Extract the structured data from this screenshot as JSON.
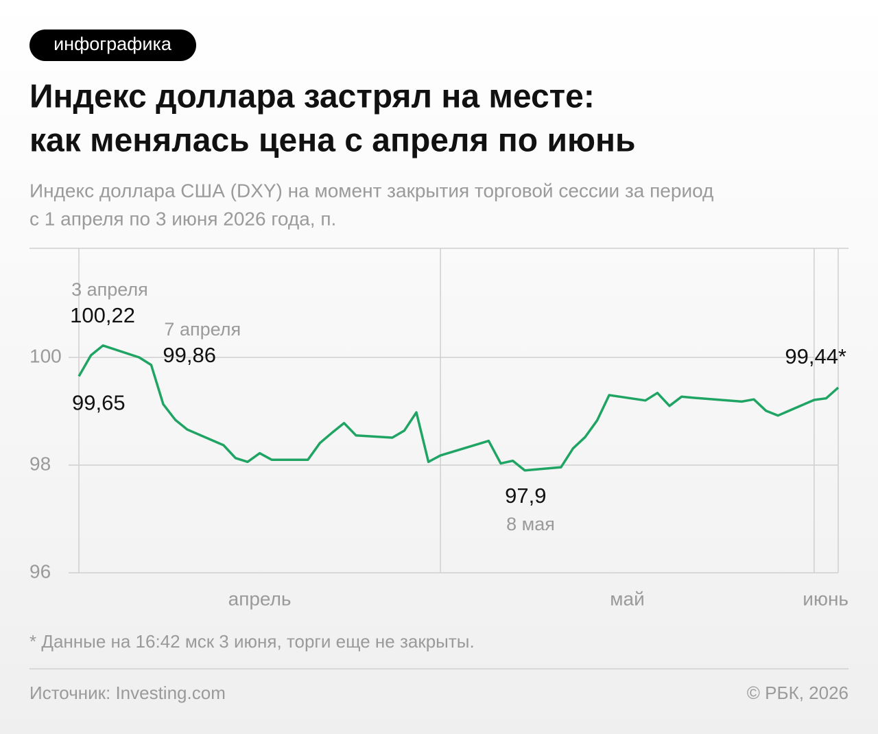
{
  "badge": "инфографика",
  "chart_data": {
    "type": "line",
    "title": [
      "Индекс доллара застрял на месте:",
      "как менялась цена с апреля по июнь"
    ],
    "subtitle": [
      "Индекс доллара США (DXY) на момент закрытия торговой сессии за период",
      "с 1 апреля по 3 июня 2026 года, п."
    ],
    "color": "#1fa463",
    "x": [
      "2026-04-01",
      "2026-04-02",
      "2026-04-03",
      "2026-04-06",
      "2026-04-07",
      "2026-04-08",
      "2026-04-09",
      "2026-04-10",
      "2026-04-13",
      "2026-04-14",
      "2026-04-15",
      "2026-04-16",
      "2026-04-17",
      "2026-04-20",
      "2026-04-21",
      "2026-04-22",
      "2026-04-23",
      "2026-04-24",
      "2026-04-27",
      "2026-04-28",
      "2026-04-29",
      "2026-04-30",
      "2026-05-01",
      "2026-05-05",
      "2026-05-06",
      "2026-05-07",
      "2026-05-08",
      "2026-05-11",
      "2026-05-12",
      "2026-05-13",
      "2026-05-14",
      "2026-05-15",
      "2026-05-18",
      "2026-05-19",
      "2026-05-20",
      "2026-05-21",
      "2026-05-22",
      "2026-05-26",
      "2026-05-27",
      "2026-05-28",
      "2026-05-29",
      "2026-06-01",
      "2026-06-02",
      "2026-06-03"
    ],
    "values": [
      99.65,
      100.04,
      100.22,
      100.0,
      99.86,
      99.13,
      98.84,
      98.66,
      98.37,
      98.13,
      98.06,
      98.22,
      98.1,
      98.1,
      98.41,
      98.6,
      98.78,
      98.55,
      98.51,
      98.64,
      98.98,
      98.06,
      98.18,
      98.45,
      98.03,
      98.08,
      97.9,
      97.96,
      98.31,
      98.52,
      98.83,
      99.3,
      99.2,
      99.34,
      99.1,
      99.27,
      99.25,
      99.18,
      99.22,
      99.01,
      98.92,
      99.21,
      99.24,
      99.44
    ],
    "value_labels": [
      "99,65",
      null,
      "100,22",
      null,
      "99,86",
      null,
      null,
      null,
      null,
      null,
      null,
      null,
      null,
      null,
      null,
      null,
      null,
      null,
      null,
      null,
      null,
      null,
      null,
      null,
      null,
      null,
      "97,9",
      null,
      null,
      null,
      null,
      null,
      null,
      null,
      null,
      null,
      null,
      null,
      null,
      null,
      null,
      null,
      null,
      "99,44*"
    ],
    "date_labels": [
      null,
      null,
      "3 апреля",
      null,
      "7 апреля",
      null,
      null,
      null,
      null,
      null,
      null,
      null,
      null,
      null,
      null,
      null,
      null,
      null,
      null,
      null,
      null,
      null,
      null,
      null,
      null,
      null,
      "8 мая",
      null,
      null,
      null,
      null,
      null,
      null,
      null,
      null,
      null,
      null,
      null,
      null,
      null,
      null,
      null,
      null,
      null
    ],
    "xlim": [
      "2026-04-01",
      "2026-06-03"
    ],
    "xticks": [
      {
        "value": "2026-04-01",
        "label": "апрель"
      },
      {
        "value": "2026-05-01",
        "label": "май"
      },
      {
        "value": "2026-06-01",
        "label": "июнь"
      }
    ],
    "ylim": [
      96,
      102
    ],
    "yticks": [
      96,
      98,
      100
    ],
    "grid": true,
    "footnote": "* Данные на 16:42 мск 3 июня, торги еще не закрыты."
  },
  "footer": {
    "source": "Источник: Investing.com",
    "copyright": "© РБК, 2026"
  }
}
